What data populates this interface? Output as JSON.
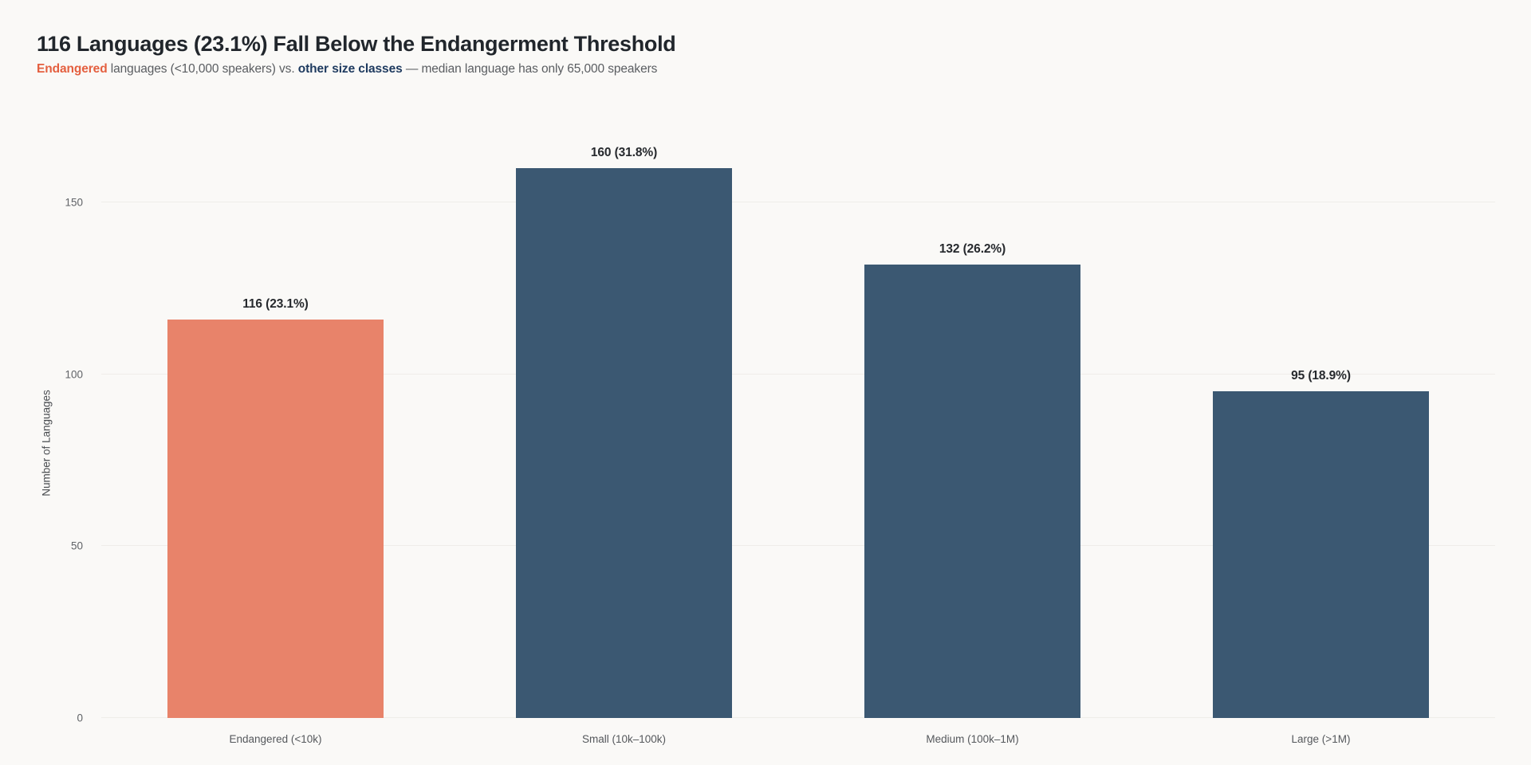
{
  "header": {
    "title": "116 Languages (23.1%) Fall Below the Endangerment Threshold",
    "subtitle_endangered": "Endangered",
    "subtitle_mid": " languages (<10,000 speakers) vs. ",
    "subtitle_classes": "other size classes",
    "subtitle_tail": " — median language has only 65,000 speakers"
  },
  "chart_data": {
    "type": "bar",
    "title": "116 Languages (23.1%) Fall Below the Endangerment Threshold",
    "subtitle": "Endangered languages (<10,000 speakers) vs. other size classes — median language has only 65,000 speakers",
    "xlabel": "",
    "ylabel": "Number of Languages",
    "ylim": [
      0,
      160
    ],
    "yticks": [
      0,
      50,
      100,
      150
    ],
    "grid": true,
    "legend": false,
    "categories": [
      "Endangered (<10k)",
      "Small (10k–100k)",
      "Medium (100k–1M)",
      "Large (>1M)"
    ],
    "values": [
      116,
      160,
      132,
      95
    ],
    "bar_labels": [
      "116 (23.1%)",
      "160 (31.8%)",
      "132 (26.2%)",
      "95 (18.9%)"
    ],
    "bar_colors": [
      "#e8836a",
      "#3b5872",
      "#3b5872",
      "#3b5872"
    ]
  },
  "colors": {
    "background": "#faf9f7",
    "title_text": "#21262c",
    "subtitle_text": "#5a5d61",
    "endangered_accent": "#e45f3f",
    "classes_accent": "#1e3a5f",
    "highlight_bar": "#e8836a",
    "base_bar": "#3b5872",
    "gridline": "#efede9",
    "axis_text": "#606367"
  }
}
